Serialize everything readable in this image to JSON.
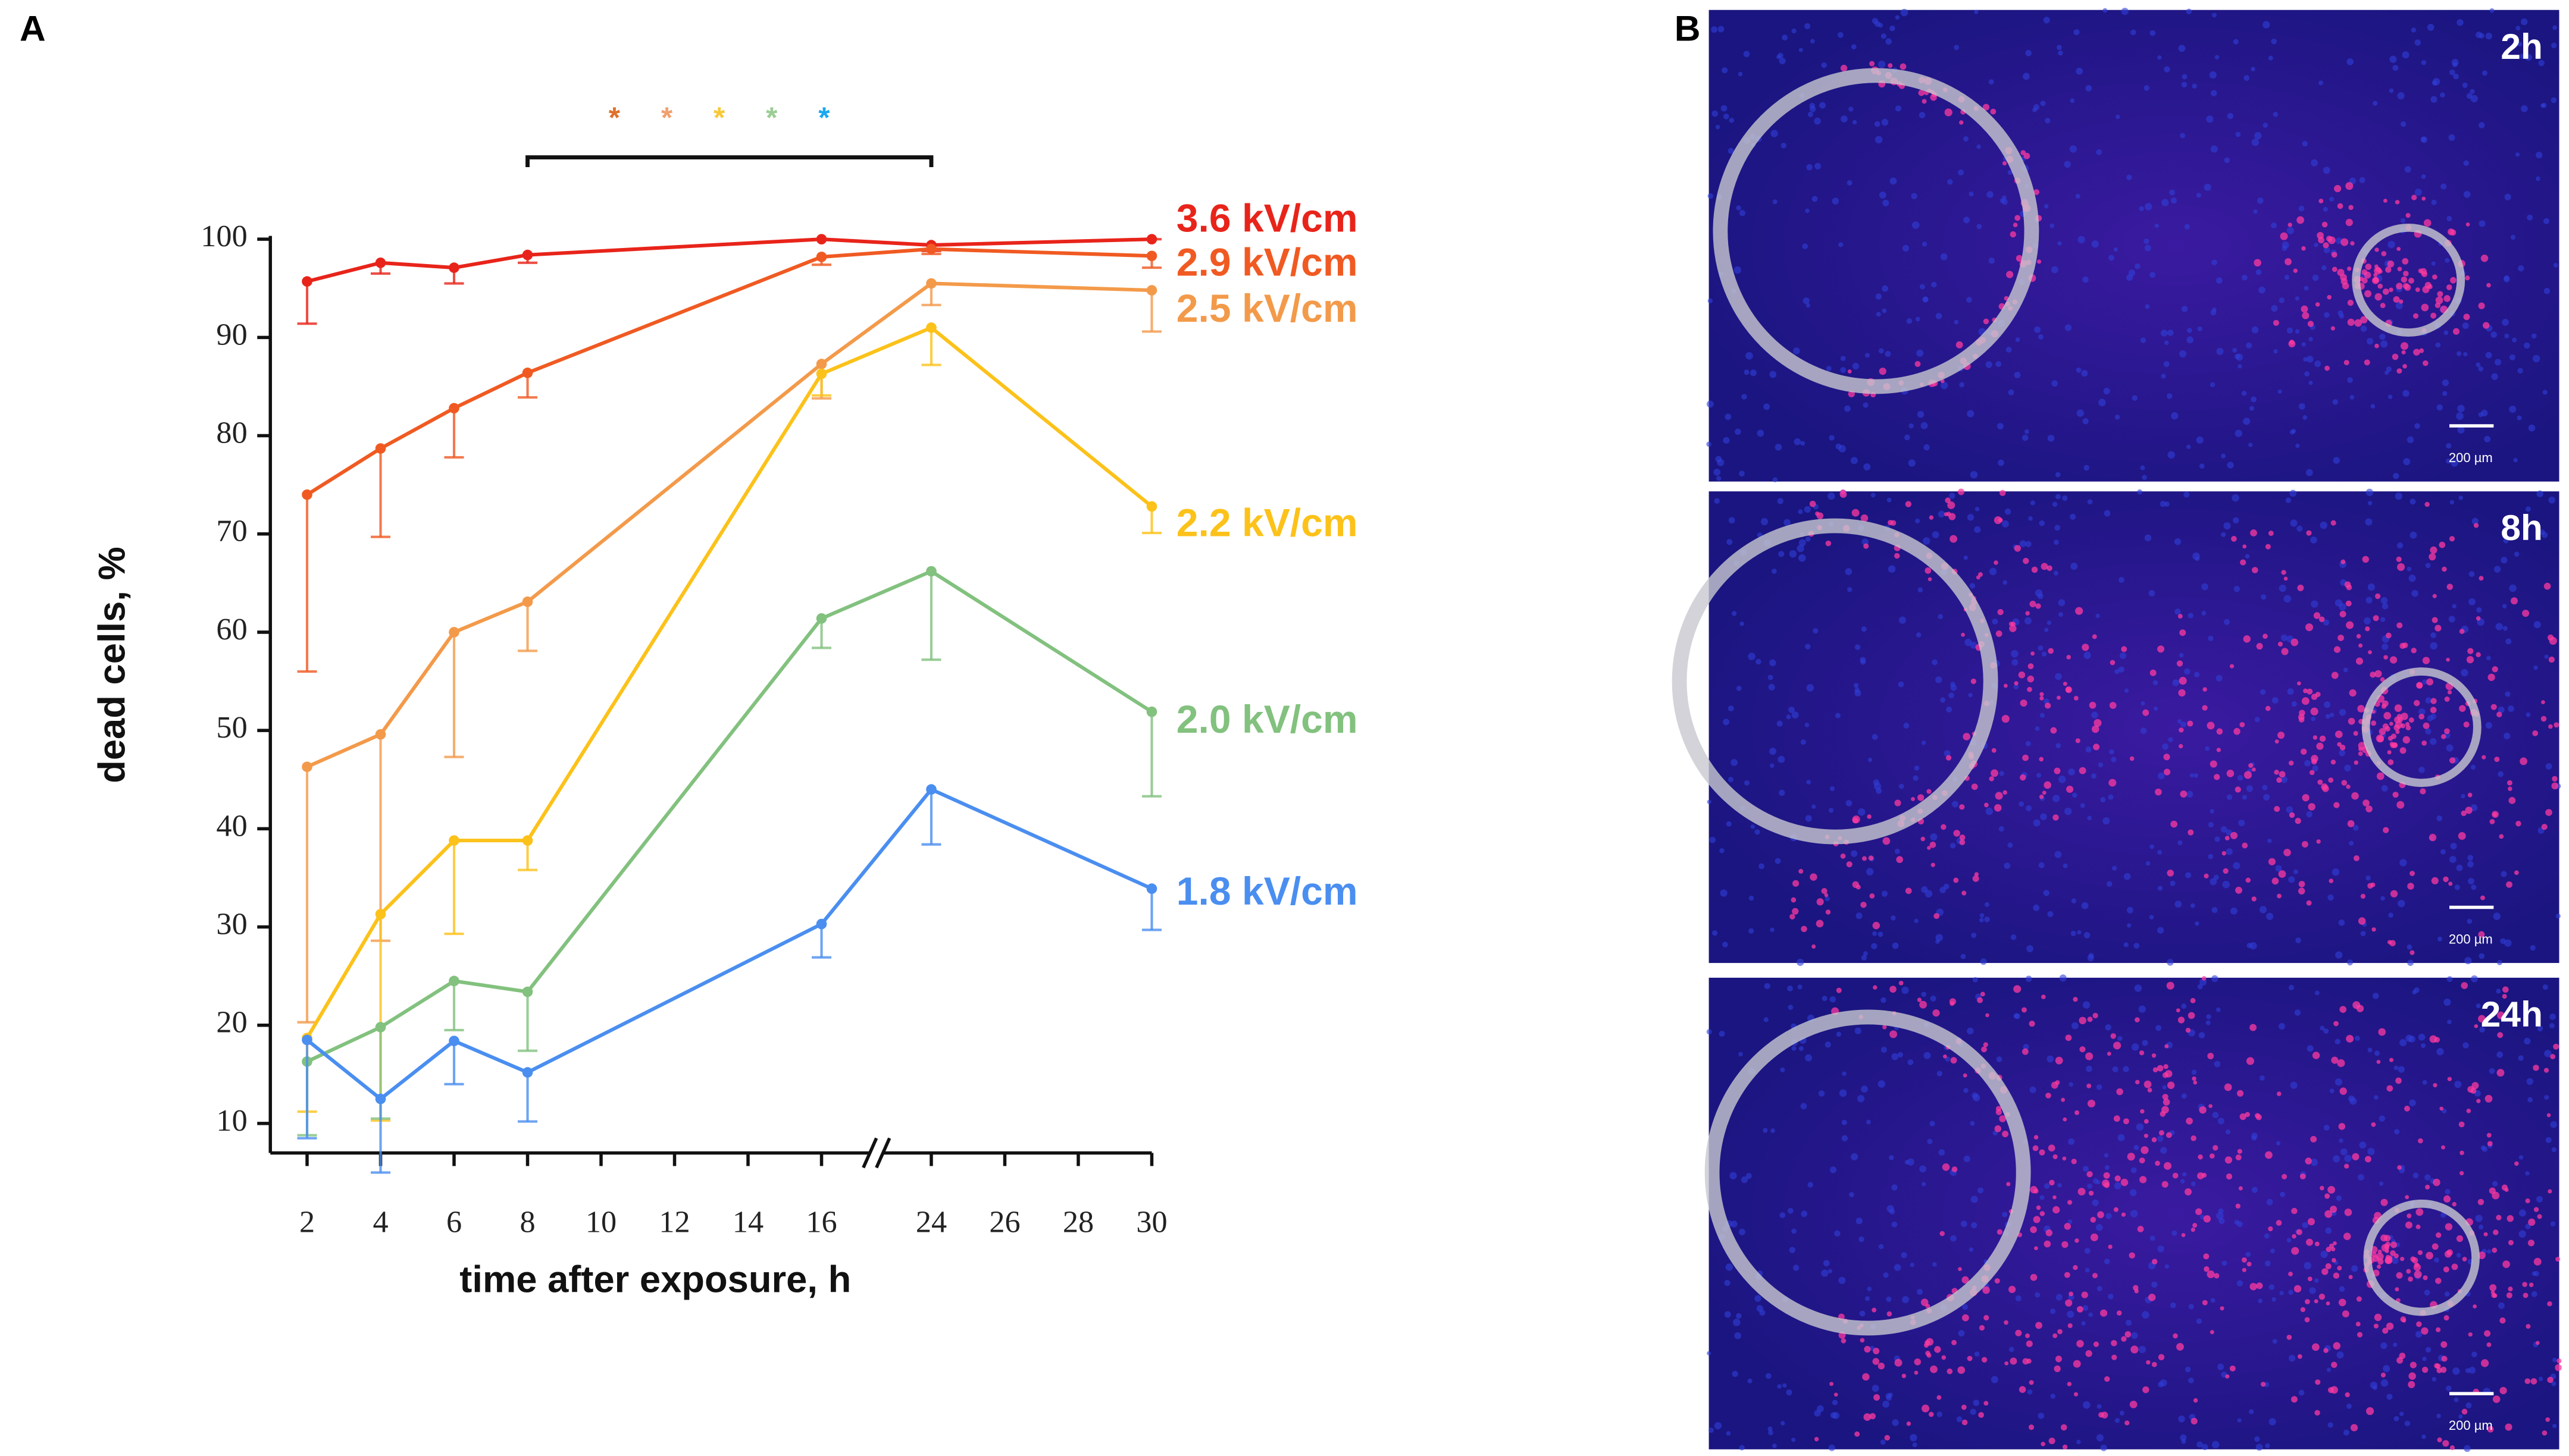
{
  "panel_labels": [
    "A",
    "B"
  ],
  "chart_data": {
    "type": "line",
    "x_axis_label": "time after exposure, h",
    "y_axis_label": "dead cells, %",
    "x": [
      2,
      4,
      6,
      8,
      16,
      24,
      30
    ],
    "xlim": [
      1,
      30
    ],
    "xticks": [
      2,
      4,
      6,
      8,
      10,
      12,
      14,
      16,
      24,
      26,
      28,
      30
    ],
    "x_break": [
      16,
      24
    ],
    "ylim": [
      7,
      100
    ],
    "yticks": [
      10,
      20,
      30,
      40,
      50,
      60,
      70,
      80,
      90,
      100
    ],
    "series": [
      {
        "name": "3.6 kV/cm",
        "color": "#e8241a",
        "values": [
          95.7,
          97.6,
          97.1,
          98.4,
          100,
          99.4,
          100
        ],
        "errors": [
          4.3,
          1.1,
          1.6,
          0.8,
          0,
          0.6,
          0
        ]
      },
      {
        "name": "2.9 kV/cm",
        "color": "#f05a22",
        "values": [
          74,
          78.7,
          82.8,
          86.4,
          98.2,
          99,
          98.3
        ],
        "errors": [
          18,
          9,
          5,
          2.5,
          0.8,
          0.5,
          1.2
        ]
      },
      {
        "name": "2.5 kV/cm",
        "color": "#f39a4a",
        "values": [
          46.3,
          49.6,
          60,
          63.1,
          87.3,
          95.5,
          94.8
        ],
        "errors": [
          26,
          21,
          12.7,
          5,
          3.5,
          2.2,
          4.2
        ]
      },
      {
        "name": "2.2 kV/cm",
        "color": "#fcc21a",
        "values": [
          18.7,
          31.3,
          38.8,
          38.8,
          86.3,
          91,
          72.8
        ],
        "errors": [
          7.5,
          21,
          9.5,
          3,
          2.2,
          3.8,
          2.7
        ]
      },
      {
        "name": "2.0 kV/cm",
        "color": "#82c17e",
        "values": [
          16.3,
          19.8,
          24.5,
          23.4,
          61.4,
          66.2,
          51.9
        ],
        "errors": [
          7.5,
          9.3,
          5,
          6,
          3,
          9,
          8.6
        ]
      },
      {
        "name": "1.8 kV/cm",
        "color": "#4a8ef0",
        "values": [
          18.5,
          12.5,
          18.4,
          15.2,
          30.3,
          44,
          33.9
        ],
        "errors": [
          10,
          7.5,
          4.4,
          5,
          3.4,
          5.6,
          4.2
        ]
      }
    ],
    "significance": {
      "range": [
        8,
        24
      ],
      "marks": [
        {
          "label": "*",
          "color": "#e0702a"
        },
        {
          "label": "*",
          "color": "#f0a070"
        },
        {
          "label": "*",
          "color": "#f8c838"
        },
        {
          "label": "*",
          "color": "#9acd94"
        },
        {
          "label": "*",
          "color": "#1aa8f0"
        }
      ]
    }
  },
  "panel_b": {
    "images": [
      {
        "label": "2h",
        "scale_bar": "200 µm"
      },
      {
        "label": "8h",
        "scale_bar": "200 µm"
      },
      {
        "label": "24h",
        "scale_bar": "200 µm"
      }
    ]
  }
}
